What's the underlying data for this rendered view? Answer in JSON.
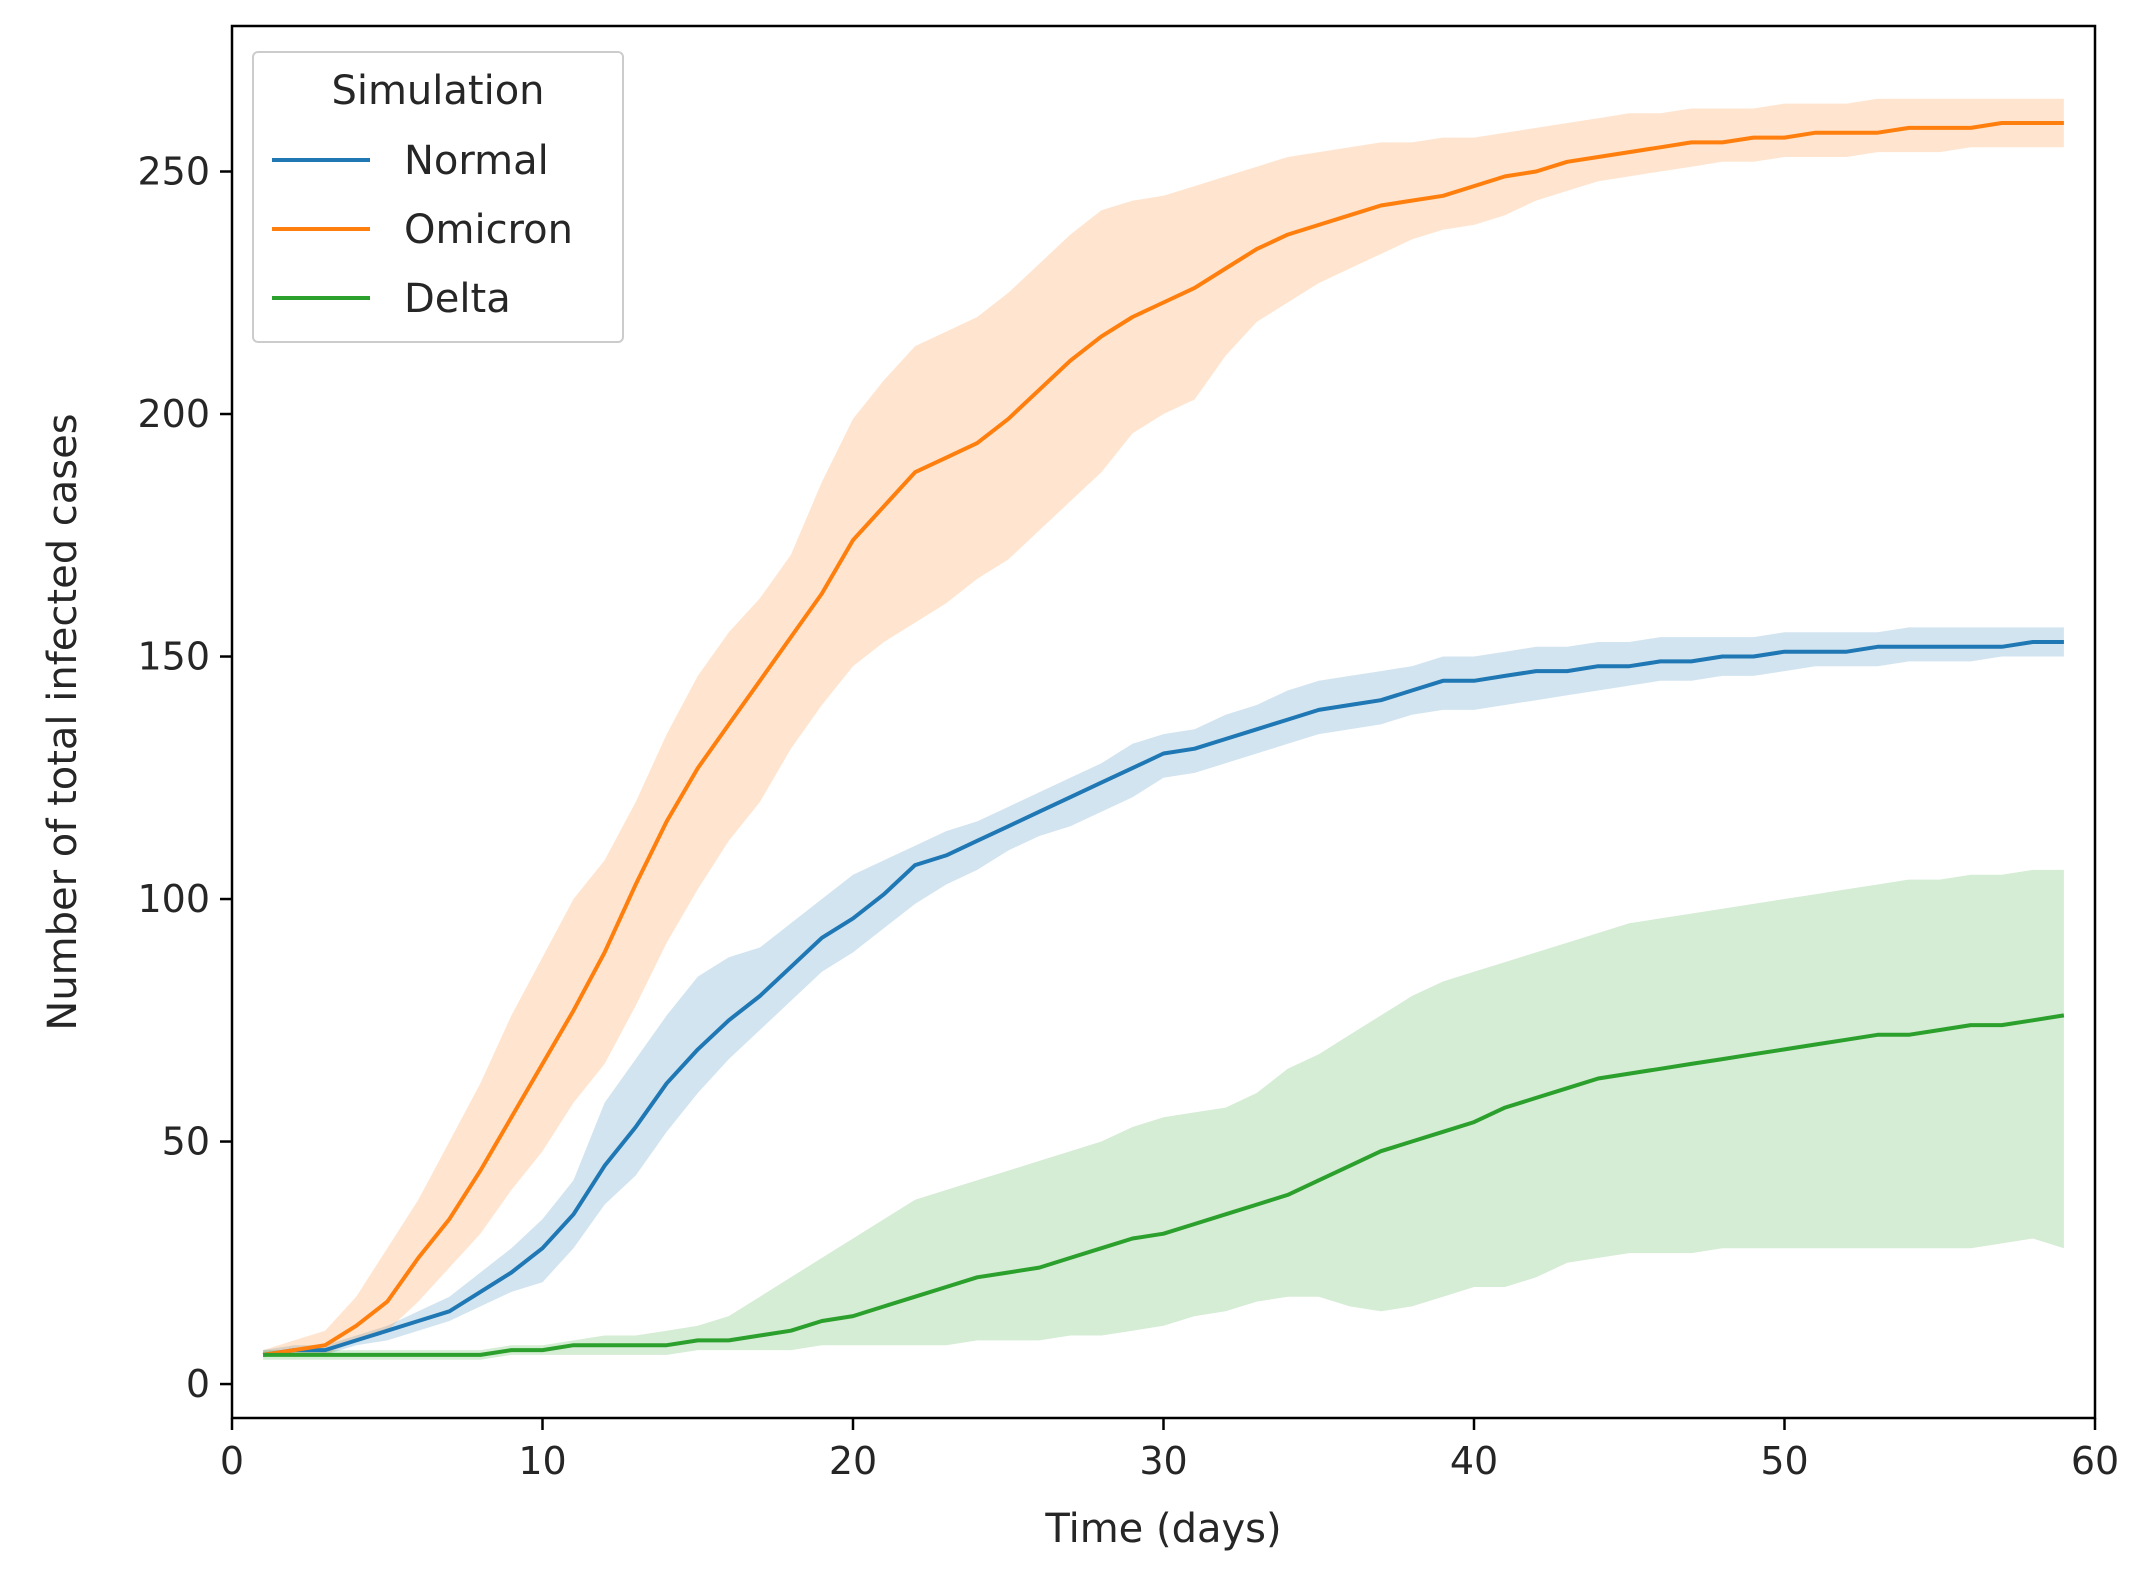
{
  "chart_data": {
    "type": "line",
    "title": "",
    "xlabel": "Time (days)",
    "ylabel": "Number of total infected cases",
    "xlim": [
      0,
      60
    ],
    "ylim": [
      -7,
      280
    ],
    "xticks": [
      0,
      10,
      20,
      30,
      40,
      50,
      60
    ],
    "yticks": [
      0,
      50,
      100,
      150,
      200,
      250
    ],
    "grid": false,
    "legend": {
      "title": "Simulation",
      "position": "top-left"
    },
    "x": [
      1,
      2,
      3,
      4,
      5,
      6,
      7,
      8,
      9,
      10,
      11,
      12,
      13,
      14,
      15,
      16,
      17,
      18,
      19,
      20,
      21,
      22,
      23,
      24,
      25,
      26,
      27,
      28,
      29,
      30,
      31,
      32,
      33,
      34,
      35,
      36,
      37,
      38,
      39,
      40,
      41,
      42,
      43,
      44,
      45,
      46,
      47,
      48,
      49,
      50,
      51,
      52,
      53,
      54,
      55,
      56,
      57,
      58,
      59
    ],
    "series": [
      {
        "name": "Normal",
        "color": "#1f77b4",
        "values": [
          6,
          7,
          7,
          9,
          11,
          13,
          15,
          19,
          23,
          28,
          35,
          45,
          53,
          62,
          69,
          75,
          80,
          86,
          92,
          96,
          101,
          107,
          109,
          112,
          115,
          118,
          121,
          124,
          127,
          130,
          131,
          133,
          135,
          137,
          139,
          140,
          141,
          143,
          145,
          145,
          146,
          147,
          147,
          148,
          148,
          149,
          149,
          150,
          150,
          151,
          151,
          151,
          152,
          152,
          152,
          152,
          152,
          153,
          153
        ],
        "lower": [
          6,
          6,
          6,
          8,
          9,
          11,
          13,
          16,
          19,
          21,
          28,
          37,
          43,
          52,
          60,
          67,
          73,
          79,
          85,
          89,
          94,
          99,
          103,
          106,
          110,
          113,
          115,
          118,
          121,
          125,
          126,
          128,
          130,
          132,
          134,
          135,
          136,
          138,
          139,
          139,
          140,
          141,
          142,
          143,
          144,
          145,
          145,
          146,
          146,
          147,
          148,
          148,
          148,
          149,
          149,
          149,
          150,
          150,
          150
        ],
        "upper": [
          7,
          8,
          8,
          10,
          12,
          15,
          18,
          23,
          28,
          34,
          42,
          58,
          67,
          76,
          84,
          88,
          90,
          95,
          100,
          105,
          108,
          111,
          114,
          116,
          119,
          122,
          125,
          128,
          132,
          134,
          135,
          138,
          140,
          143,
          145,
          146,
          147,
          148,
          150,
          150,
          151,
          152,
          152,
          153,
          153,
          154,
          154,
          154,
          154,
          155,
          155,
          155,
          155,
          156,
          156,
          156,
          156,
          156,
          156
        ]
      },
      {
        "name": "Omicron",
        "color": "#ff7f0e",
        "values": [
          6,
          7,
          8,
          12,
          17,
          26,
          34,
          44,
          55,
          66,
          77,
          89,
          103,
          116,
          127,
          136,
          145,
          154,
          163,
          174,
          181,
          188,
          191,
          194,
          199,
          205,
          211,
          216,
          220,
          223,
          226,
          230,
          234,
          237,
          239,
          241,
          243,
          244,
          245,
          247,
          249,
          250,
          252,
          253,
          254,
          255,
          256,
          256,
          257,
          257,
          258,
          258,
          258,
          259,
          259,
          259,
          260,
          260,
          260
        ],
        "lower": [
          6,
          6,
          6,
          9,
          11,
          17,
          24,
          31,
          40,
          48,
          58,
          66,
          78,
          91,
          102,
          112,
          120,
          131,
          140,
          148,
          153,
          157,
          161,
          166,
          170,
          176,
          182,
          188,
          196,
          200,
          203,
          212,
          219,
          223,
          227,
          230,
          233,
          236,
          238,
          239,
          241,
          244,
          246,
          248,
          249,
          250,
          251,
          252,
          252,
          253,
          253,
          253,
          254,
          254,
          254,
          255,
          255,
          255,
          255
        ],
        "upper": [
          7,
          9,
          11,
          18,
          28,
          38,
          50,
          62,
          76,
          88,
          100,
          108,
          120,
          134,
          146,
          155,
          162,
          171,
          186,
          199,
          207,
          214,
          217,
          220,
          225,
          231,
          237,
          242,
          244,
          245,
          247,
          249,
          251,
          253,
          254,
          255,
          256,
          256,
          257,
          257,
          258,
          259,
          260,
          261,
          262,
          262,
          263,
          263,
          263,
          264,
          264,
          264,
          265,
          265,
          265,
          265,
          265,
          265,
          265
        ]
      },
      {
        "name": "Delta",
        "color": "#2ca02c",
        "values": [
          6,
          6,
          6,
          6,
          6,
          6,
          6,
          6,
          7,
          7,
          8,
          8,
          8,
          8,
          9,
          9,
          10,
          11,
          13,
          14,
          16,
          18,
          20,
          22,
          23,
          24,
          26,
          28,
          30,
          31,
          33,
          35,
          37,
          39,
          42,
          45,
          48,
          50,
          52,
          54,
          57,
          59,
          61,
          63,
          64,
          65,
          66,
          67,
          68,
          69,
          70,
          71,
          72,
          72,
          73,
          74,
          74,
          75,
          76
        ],
        "lower": [
          5,
          5,
          5,
          5,
          5,
          5,
          5,
          5,
          6,
          6,
          6,
          6,
          6,
          6,
          7,
          7,
          7,
          7,
          8,
          8,
          8,
          8,
          8,
          9,
          9,
          9,
          10,
          10,
          11,
          12,
          14,
          15,
          17,
          18,
          18,
          16,
          15,
          16,
          18,
          20,
          20,
          22,
          25,
          26,
          27,
          27,
          27,
          28,
          28,
          28,
          28,
          28,
          28,
          28,
          28,
          28,
          29,
          30,
          28
        ],
        "upper": [
          7,
          7,
          7,
          7,
          7,
          7,
          7,
          7,
          8,
          8,
          9,
          10,
          10,
          11,
          12,
          14,
          18,
          22,
          26,
          30,
          34,
          38,
          40,
          42,
          44,
          46,
          48,
          50,
          53,
          55,
          56,
          57,
          60,
          65,
          68,
          72,
          76,
          80,
          83,
          85,
          87,
          89,
          91,
          93,
          95,
          96,
          97,
          98,
          99,
          100,
          101,
          102,
          103,
          104,
          104,
          105,
          105,
          106,
          106
        ]
      }
    ]
  }
}
